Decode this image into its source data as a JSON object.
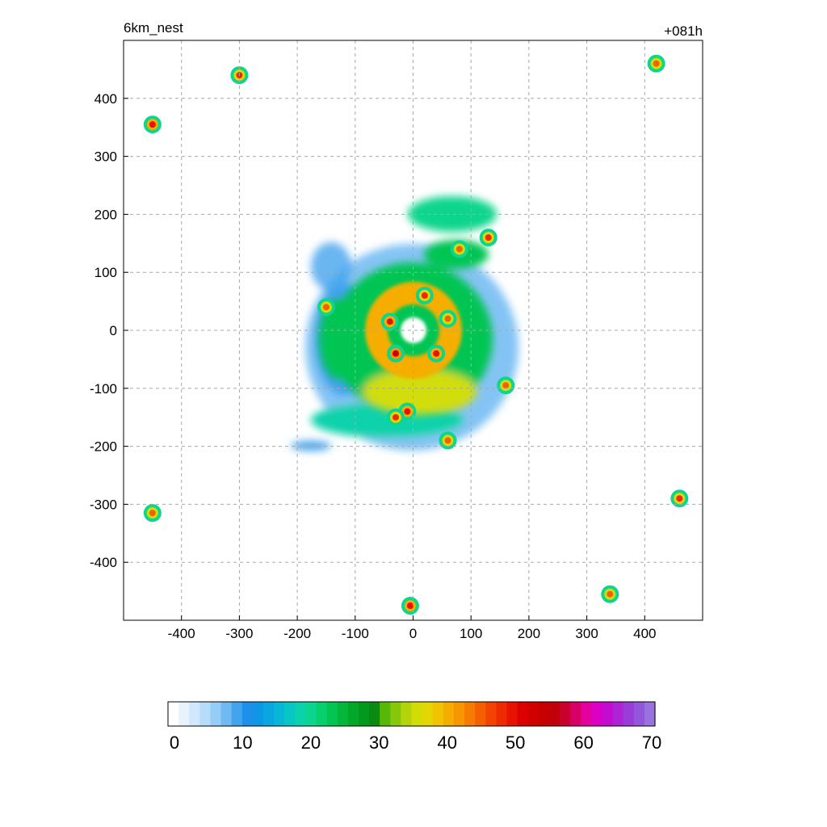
{
  "chart_data": {
    "type": "heatmap",
    "title_left": "6km_nest",
    "title_right": "+081h",
    "xlabel": "",
    "ylabel": "",
    "xlim": [
      -500,
      500
    ],
    "ylim": [
      -500,
      500
    ],
    "x_ticks": [
      -400,
      -300,
      -200,
      -100,
      0,
      100,
      200,
      300,
      400
    ],
    "y_ticks": [
      400,
      300,
      200,
      100,
      0,
      -100,
      -200,
      -300,
      -400
    ],
    "grid": "dashed gray",
    "colorbar": {
      "min": 0,
      "max": 70,
      "ticks": [
        0,
        10,
        20,
        30,
        40,
        50,
        60,
        70
      ],
      "colors": [
        "#ffffff",
        "#e6f3fd",
        "#cfe8fb",
        "#b5dcf9",
        "#96cdf6",
        "#6fbaf2",
        "#43a4ee",
        "#1e90ea",
        "#0f97e6",
        "#0aa6df",
        "#08b6d5",
        "#08c6c4",
        "#0ad2ab",
        "#0bd58e",
        "#08cf6e",
        "#05c552",
        "#04b73b",
        "#03a82a",
        "#01991e",
        "#0a8a12",
        "#58b80a",
        "#86c70c",
        "#b3d40b",
        "#d2dd08",
        "#e4d505",
        "#f0c402",
        "#f5ae00",
        "#f69600",
        "#f57c00",
        "#f45f00",
        "#f24300",
        "#ee2a00",
        "#e61300",
        "#dc0000",
        "#d00000",
        "#c60000",
        "#c0000a",
        "#c8002e",
        "#d80066",
        "#e4009c",
        "#dc00c4",
        "#c40cd0",
        "#ac24d4",
        "#9a3cd8",
        "#9256da",
        "#9a72e0"
      ]
    },
    "features": [
      {
        "x": 0,
        "y": 0,
        "type": "eye"
      },
      {
        "x": -30,
        "y": -40,
        "v": 52
      },
      {
        "x": -40,
        "y": 15,
        "v": 50
      },
      {
        "x": 20,
        "y": 60,
        "v": 48
      },
      {
        "x": 40,
        "y": -40,
        "v": 50
      },
      {
        "x": 60,
        "y": 20,
        "v": 45
      },
      {
        "x": -10,
        "y": -140,
        "v": 50
      },
      {
        "x": -30,
        "y": -150,
        "v": 48
      },
      {
        "x": 60,
        "y": -190,
        "v": 45
      },
      {
        "x": 130,
        "y": 160,
        "v": 48
      },
      {
        "x": 80,
        "y": 140,
        "v": 45
      },
      {
        "x": -150,
        "y": 40,
        "v": 45
      },
      {
        "x": 160,
        "y": -95,
        "v": 45
      },
      {
        "x": -450,
        "y": 355,
        "v": 50
      },
      {
        "x": -300,
        "y": 440,
        "v": 48
      },
      {
        "x": 420,
        "y": 460,
        "v": 45
      },
      {
        "x": 460,
        "y": -290,
        "v": 48
      },
      {
        "x": -450,
        "y": -315,
        "v": 45
      },
      {
        "x": 340,
        "y": -455,
        "v": 45
      },
      {
        "x": -5,
        "y": -475,
        "v": 50
      }
    ]
  }
}
